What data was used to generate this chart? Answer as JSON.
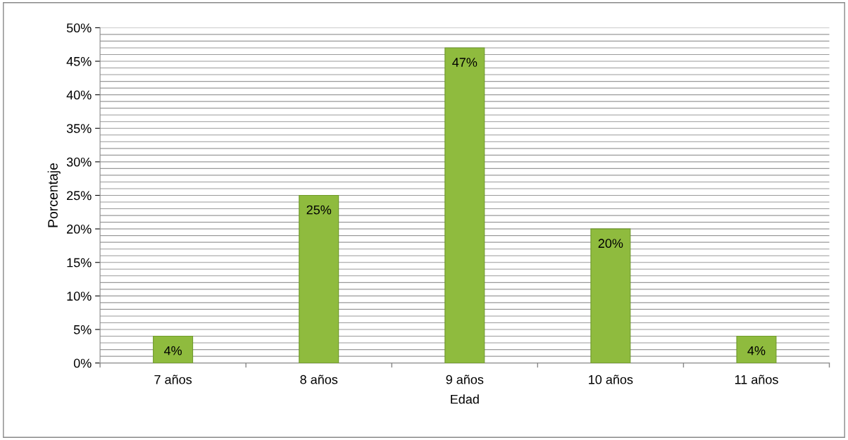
{
  "chart_data": {
    "type": "bar",
    "xlabel": "Edad",
    "ylabel": "Porcentaje",
    "categories": [
      "7 años",
      "8 años",
      "9 años",
      "10 años",
      "11 años"
    ],
    "values": [
      4,
      25,
      47,
      20,
      4
    ],
    "value_labels": [
      "4%",
      "25%",
      "47%",
      "20%",
      "4%"
    ],
    "color": "#8fbb3e",
    "ylim": [
      0,
      50
    ],
    "yticks": [
      {
        "value": 0,
        "label": "0%"
      },
      {
        "value": 1,
        "label": null
      },
      {
        "value": 2,
        "label": null
      },
      {
        "value": 3,
        "label": null
      },
      {
        "value": 4,
        "label": null
      },
      {
        "value": 5,
        "label": "5%"
      },
      {
        "value": 6,
        "label": null
      },
      {
        "value": 7,
        "label": null
      },
      {
        "value": 8,
        "label": null
      },
      {
        "value": 9,
        "label": null
      },
      {
        "value": 10,
        "label": "10%"
      },
      {
        "value": 11,
        "label": null
      },
      {
        "value": 12,
        "label": null
      },
      {
        "value": 13,
        "label": null
      },
      {
        "value": 14,
        "label": null
      },
      {
        "value": 15,
        "label": "15%"
      },
      {
        "value": 16,
        "label": null
      },
      {
        "value": 17,
        "label": null
      },
      {
        "value": 18,
        "label": null
      },
      {
        "value": 19,
        "label": null
      },
      {
        "value": 20,
        "label": "20%"
      },
      {
        "value": 21,
        "label": null
      },
      {
        "value": 22,
        "label": null
      },
      {
        "value": 23,
        "label": null
      },
      {
        "value": 24,
        "label": null
      },
      {
        "value": 25,
        "label": "25%"
      },
      {
        "value": 26,
        "label": null
      },
      {
        "value": 27,
        "label": null
      },
      {
        "value": 28,
        "label": null
      },
      {
        "value": 29,
        "label": null
      },
      {
        "value": 30,
        "label": "30%"
      },
      {
        "value": 31,
        "label": null
      },
      {
        "value": 32,
        "label": null
      },
      {
        "value": 33,
        "label": null
      },
      {
        "value": 34,
        "label": null
      },
      {
        "value": 35,
        "label": "35%"
      },
      {
        "value": 36,
        "label": null
      },
      {
        "value": 37,
        "label": null
      },
      {
        "value": 38,
        "label": null
      },
      {
        "value": 39,
        "label": null
      },
      {
        "value": 40,
        "label": "40%"
      },
      {
        "value": 41,
        "label": null
      },
      {
        "value": 42,
        "label": null
      },
      {
        "value": 43,
        "label": null
      },
      {
        "value": 44,
        "label": null
      },
      {
        "value": 45,
        "label": "45%"
      },
      {
        "value": 46,
        "label": null
      },
      {
        "value": 47,
        "label": null
      },
      {
        "value": 48,
        "label": null
      },
      {
        "value": 49,
        "label": null
      },
      {
        "value": 50,
        "label": "50%"
      }
    ],
    "grid": "y"
  }
}
